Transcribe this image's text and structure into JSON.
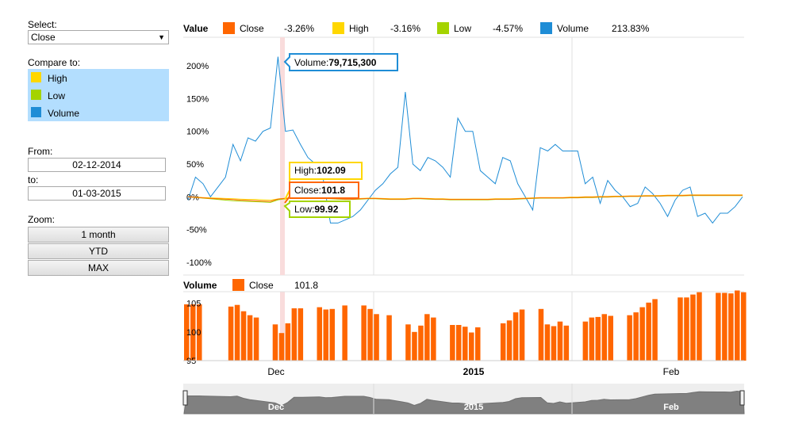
{
  "controls": {
    "select_label": "Select:",
    "select_value": "Close",
    "compare_label": "Compare to:",
    "compare_items": [
      {
        "label": "High",
        "color": "#ffd700"
      },
      {
        "label": "Low",
        "color": "#a4d300"
      },
      {
        "label": "Volume",
        "color": "#1f8dd6"
      }
    ],
    "from_label": "From:",
    "from_value": "02-12-2014",
    "to_label": "to:",
    "to_value": "01-03-2015",
    "zoom_label": "Zoom:",
    "zoom_buttons": [
      "1 month",
      "YTD",
      "MAX"
    ]
  },
  "legend": {
    "title": "Value",
    "items": [
      {
        "name": "Close",
        "color": "#ff6600",
        "change": "-3.26%"
      },
      {
        "name": "High",
        "color": "#ffd700",
        "change": "-3.16%"
      },
      {
        "name": "Low",
        "color": "#a4d300",
        "change": "-4.57%"
      },
      {
        "name": "Volume",
        "color": "#1f8dd6",
        "change": "213.83%"
      }
    ]
  },
  "volume_legend": {
    "title": "Volume",
    "name": "Close",
    "color": "#ff6600",
    "value": "101.8"
  },
  "tooltips": {
    "volume": {
      "label": "Volume:",
      "value": "79,715,300",
      "color": "#1f8dd6"
    },
    "high": {
      "label": "High:",
      "value": "102.09",
      "color": "#ffd700"
    },
    "close": {
      "label": "Close:",
      "value": "101.8",
      "color": "#ff6600"
    },
    "low": {
      "label": "Low:",
      "value": "99.92",
      "color": "#a4d300"
    }
  },
  "chart_data": [
    {
      "type": "line",
      "y_unit": "percent change",
      "ylim": [
        -100,
        200
      ],
      "yticks": [
        "200%",
        "150%",
        "100%",
        "50%",
        "0%",
        "-50%",
        "-100%"
      ],
      "grid": true,
      "series": [
        {
          "name": "Volume",
          "color": "#1f8dd6",
          "values": [
            -5,
            30,
            20,
            0,
            15,
            30,
            80,
            55,
            90,
            85,
            100,
            105,
            213.8,
            100,
            102,
            80,
            60,
            50,
            30,
            -40,
            -40,
            -35,
            -30,
            -20,
            -5,
            10,
            20,
            35,
            45,
            160,
            50,
            40,
            60,
            55,
            45,
            30,
            120,
            100,
            100,
            40,
            30,
            20,
            60,
            55,
            20,
            0,
            -20,
            75,
            70,
            80,
            70,
            70,
            70,
            20,
            30,
            -10,
            25,
            10,
            0,
            -15,
            -10,
            15,
            5,
            -10,
            -30,
            -5,
            10,
            15,
            -30,
            -25,
            -40,
            -25,
            -25,
            -15,
            0
          ]
        },
        {
          "name": "High",
          "color": "#ffd700",
          "values": [
            0,
            -0.5,
            -1,
            -1.5,
            -2,
            -2.5,
            -3,
            -3.5,
            -4,
            -4,
            -4.5,
            -5,
            -3.2,
            -2,
            -1.5,
            -1,
            -1,
            -1,
            -1.5,
            -2,
            -2.5,
            -3,
            -3,
            -2.5,
            -2,
            -2,
            -2.5,
            -3,
            -3,
            -3,
            -2,
            -2,
            -2.5,
            -3,
            -3,
            -3.5,
            -3.5,
            -3.5,
            -3.5,
            -3.5,
            -3.5,
            -3,
            -3,
            -3,
            -2.5,
            -2,
            -1.5,
            -1,
            -1,
            -1,
            -1,
            -0.5,
            -0.5,
            0,
            0,
            0.5,
            0.5,
            1,
            1,
            1.5,
            1.5,
            2,
            2,
            2,
            2.5,
            2.5,
            2.5,
            3,
            3,
            3,
            3,
            3,
            3,
            3,
            3
          ]
        },
        {
          "name": "Low",
          "color": "#a4d300",
          "values": [
            0,
            -1,
            -2,
            -3,
            -4,
            -5,
            -6,
            -6.5,
            -7,
            -7.5,
            -8,
            -8.5,
            -4.6,
            -3,
            -2.5,
            -2,
            -2,
            -2,
            -2.5,
            -3,
            -3.5,
            -4,
            -4,
            -3.5,
            -3,
            -3,
            -3.5,
            -4,
            -4,
            -4,
            -3,
            -3,
            -3.5,
            -4,
            -4,
            -4.5,
            -4.5,
            -4.5,
            -4.5,
            -4.5,
            -4.5,
            -4,
            -4,
            -4,
            -3.5,
            -3,
            -2.5,
            -2,
            -2,
            -2,
            -2,
            -1.5,
            -1.5,
            -1,
            -1,
            -0.5,
            -0.5,
            0,
            0,
            0.5,
            0.5,
            1,
            1,
            1,
            1.5,
            1.5,
            1.5,
            2,
            2,
            2,
            2,
            2,
            2,
            2,
            2
          ]
        },
        {
          "name": "Close",
          "color": "#ff6600",
          "values": [
            0,
            -0.8,
            -1.5,
            -2.2,
            -3,
            -3.5,
            -4.2,
            -5,
            -5.5,
            -6,
            -6.5,
            -7,
            -3.3,
            -2.5,
            -2,
            -1.5,
            -1.5,
            -1.5,
            -2,
            -2.5,
            -3,
            -3.5,
            -3.5,
            -3,
            -2.5,
            -2.5,
            -3,
            -3.5,
            -3.5,
            -3.5,
            -2.5,
            -2.5,
            -3,
            -3.5,
            -3.5,
            -4,
            -4,
            -4,
            -4,
            -4,
            -4,
            -3.5,
            -3.5,
            -3.5,
            -3,
            -2.5,
            -2,
            -1.5,
            -1.5,
            -1.5,
            -1.5,
            -1,
            -1,
            -0.5,
            -0.5,
            0,
            0,
            0.5,
            0.5,
            1,
            1,
            1.5,
            1.5,
            1.5,
            2,
            2,
            2,
            2.5,
            2.5,
            2.5,
            2.5,
            2.5,
            2.5,
            2.5,
            2.5
          ]
        }
      ]
    },
    {
      "type": "bar",
      "series_name": "Close",
      "ylim": [
        95,
        107
      ],
      "yticks": [
        "105",
        "100",
        "95"
      ],
      "x_labels": [
        "Dec",
        "2015",
        "Feb"
      ],
      "bars": [
        {
          "day": 0,
          "v": 104.8
        },
        {
          "day": 1,
          "v": 104.8
        },
        {
          "day": 2,
          "v": 104.8
        },
        {
          "day": 7,
          "v": 104.4
        },
        {
          "day": 8,
          "v": 104.7
        },
        {
          "day": 9,
          "v": 103.6
        },
        {
          "day": 10,
          "v": 102.9
        },
        {
          "day": 11,
          "v": 102.5
        },
        {
          "day": 14,
          "v": 101.3
        },
        {
          "day": 15,
          "v": 99.8
        },
        {
          "day": 16,
          "v": 101.5
        },
        {
          "day": 17,
          "v": 104.1
        },
        {
          "day": 18,
          "v": 104.1
        },
        {
          "day": 21,
          "v": 104.3
        },
        {
          "day": 22,
          "v": 103.9
        },
        {
          "day": 23,
          "v": 104.0
        },
        {
          "day": 25,
          "v": 104.6
        },
        {
          "day": 28,
          "v": 104.6
        },
        {
          "day": 29,
          "v": 104.0
        },
        {
          "day": 30,
          "v": 103.1
        },
        {
          "day": 32,
          "v": 102.9
        },
        {
          "day": 35,
          "v": 101.3
        },
        {
          "day": 36,
          "v": 100.0
        },
        {
          "day": 37,
          "v": 101.1
        },
        {
          "day": 38,
          "v": 103.1
        },
        {
          "day": 39,
          "v": 102.5
        },
        {
          "day": 42,
          "v": 101.2
        },
        {
          "day": 43,
          "v": 101.2
        },
        {
          "day": 44,
          "v": 100.9
        },
        {
          "day": 45,
          "v": 99.9
        },
        {
          "day": 46,
          "v": 100.8
        },
        {
          "day": 50,
          "v": 101.5
        },
        {
          "day": 51,
          "v": 102.0
        },
        {
          "day": 52,
          "v": 103.4
        },
        {
          "day": 53,
          "v": 103.9
        },
        {
          "day": 56,
          "v": 104.0
        },
        {
          "day": 57,
          "v": 101.3
        },
        {
          "day": 58,
          "v": 101.0
        },
        {
          "day": 59,
          "v": 101.8
        },
        {
          "day": 60,
          "v": 101.1
        },
        {
          "day": 63,
          "v": 101.8
        },
        {
          "day": 64,
          "v": 102.5
        },
        {
          "day": 65,
          "v": 102.6
        },
        {
          "day": 66,
          "v": 103.1
        },
        {
          "day": 67,
          "v": 102.8
        },
        {
          "day": 70,
          "v": 102.9
        },
        {
          "day": 71,
          "v": 103.4
        },
        {
          "day": 72,
          "v": 104.3
        },
        {
          "day": 73,
          "v": 105.1
        },
        {
          "day": 74,
          "v": 105.7
        },
        {
          "day": 78,
          "v": 106.0
        },
        {
          "day": 79,
          "v": 106.0
        },
        {
          "day": 80,
          "v": 106.5
        },
        {
          "day": 81,
          "v": 106.9
        },
        {
          "day": 84,
          "v": 106.8
        },
        {
          "day": 85,
          "v": 106.8
        },
        {
          "day": 86,
          "v": 106.7
        },
        {
          "day": 87,
          "v": 107.2
        },
        {
          "day": 88,
          "v": 106.9
        }
      ]
    }
  ],
  "navigator": {
    "labels": [
      "Dec",
      "2015",
      "Feb"
    ]
  }
}
